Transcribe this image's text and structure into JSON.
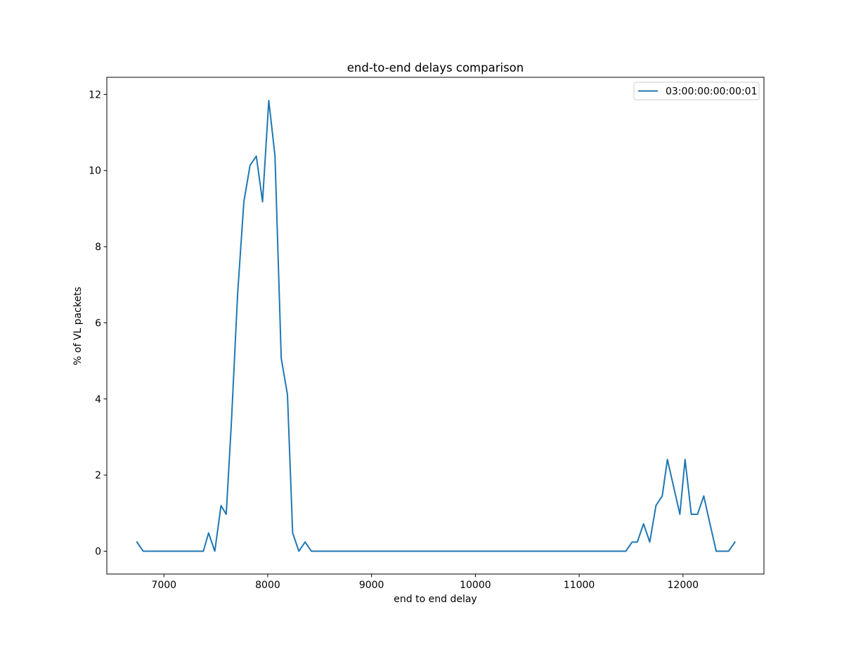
{
  "chart_data": {
    "type": "line",
    "title": "end-to-end delays comparison",
    "xlabel": "end to end delay",
    "ylabel": "% of VL packets",
    "xlim": [
      6450,
      12780
    ],
    "ylim": [
      -0.6,
      12.45
    ],
    "xticks": [
      7000,
      8000,
      9000,
      10000,
      11000,
      12000
    ],
    "yticks": [
      0,
      2,
      4,
      6,
      8,
      10,
      12
    ],
    "grid": false,
    "legend_position": "top-right",
    "series": [
      {
        "name": "03:00:00:00:00:01",
        "color": "#1f77b4",
        "x": [
          6740,
          6800,
          6850,
          6900,
          7000,
          7100,
          7200,
          7300,
          7380,
          7430,
          7490,
          7550,
          7600,
          7650,
          7710,
          7770,
          7830,
          7890,
          7950,
          8010,
          8070,
          8130,
          8190,
          8240,
          8300,
          8360,
          8420,
          8500,
          9000,
          9500,
          10000,
          10500,
          11000,
          11450,
          11510,
          11560,
          11620,
          11680,
          11740,
          11800,
          11850,
          11910,
          11970,
          12020,
          12080,
          12140,
          12200,
          12260,
          12320,
          12380,
          12440,
          12500
        ],
        "y": [
          0.24,
          0.0,
          0.0,
          0.0,
          0.0,
          0.0,
          0.0,
          0.0,
          0.0,
          0.48,
          0.0,
          1.2,
          0.97,
          3.38,
          6.76,
          9.18,
          10.14,
          10.38,
          9.18,
          11.84,
          10.38,
          5.07,
          4.11,
          0.48,
          0.0,
          0.24,
          0.0,
          0.0,
          0.0,
          0.0,
          0.0,
          0.0,
          0.0,
          0.0,
          0.24,
          0.24,
          0.72,
          0.24,
          1.2,
          1.45,
          2.41,
          1.69,
          0.97,
          2.41,
          0.97,
          0.97,
          1.45,
          0.72,
          0.0,
          0.0,
          0.0,
          0.24
        ]
      }
    ]
  }
}
